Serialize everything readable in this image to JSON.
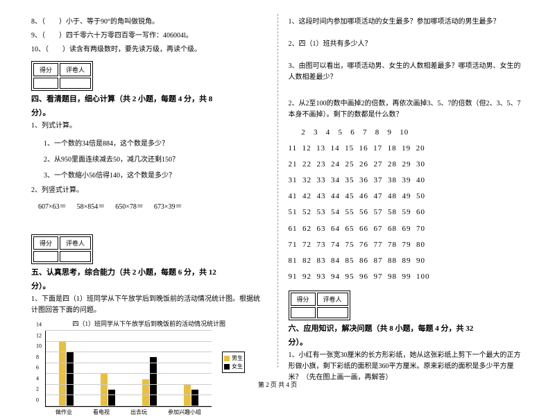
{
  "left": {
    "q8": "8、（　　）小于、等于90°的角叫做锐角。",
    "q9": "9、（　　）四千零六十万零四百零一写作：406004l。",
    "q10": "10、（　　）读含有两级数时，要先读万级，再读个级。",
    "score_hdr1": "得分",
    "score_hdr2": "评卷人",
    "sec4_title": "四、看清题目，细心计算（共 2 小题，每题 4 分，共 8",
    "fen": "分）。",
    "s1": "1、列式计算。",
    "s1a": "1、一个数的34倍是884，这个数是多少？",
    "s1b": "2、从950里面连续减去50，减几次还剩150？",
    "s1c": "3、一个数缩小56倍得140，这个数是多少？",
    "s2": "2、列竖式计算。",
    "calc1": "607×63＝",
    "calc2": "58×854＝",
    "calc3": "650×78＝",
    "calc4": "673×39＝",
    "sec5_title": "五、认真思考，综合能力（共 2 小题，每题 6 分，共 12",
    "s5_1": "1、下面是四（1）班同学从下午放学后到晚饭前的活动情况统计图。根据统计图回答下面的问题。",
    "chart_title": "四（1）班同学从下午放学后到晚饭前的活动情况统计图",
    "chart": {
      "ylim": [
        0,
        14
      ],
      "ytick_step": 2,
      "categories": [
        "做作业",
        "看电视",
        "出去玩",
        "参加兴趣小组"
      ],
      "boys": [
        12,
        6,
        5,
        4
      ],
      "girls": [
        10,
        3,
        9,
        3
      ],
      "boy_color": "#e8c040",
      "girl_color": "#000000",
      "grid_color": "#cccccc",
      "legend_boy": "男生",
      "legend_girl": "女生"
    }
  },
  "right": {
    "q1": "1、这段时间内参加哪项活动的女生最多？参加哪项活动的男生最多？",
    "q2": "2、四（1）班共有多少人？",
    "q3": "3、由图可以看出，哪项活动男、女生的人数相差最多？哪项活动男、女生的人数相差最少？",
    "s2": "2、从2至100的数中画掉2的倍数，再依次画掉3、5、7的倍数（但2、3、5、7本身不画掉）。剩下的数都是什么数？",
    "grid_rows": [
      "     2   3   4   5   6   7   8   9   10",
      "11  12  13  14  15  16  17  18  19  20",
      "21  22  23  24  25  26  27  28  29  30",
      "31  32  33  34  35  36  37  38  39  40",
      "41  42  43  44  45  46  47  48  49  50",
      "51  52  53  54  55  56  57  58  59  60",
      "61  62  63  64  65  66  67  68  69  70",
      "71  72  73  74  75  76  77  78  79  80",
      "81  82  83  84  85  86  87  88  89  90",
      "91  92  93  94  95  96  97  98  99  100"
    ],
    "score_hdr1": "得分",
    "score_hdr2": "评卷人",
    "sec6_title": "六、应用知识，解决问题（共 8 小题，每题 4 分，共 32",
    "fen": "分）。",
    "s6_1": "1、小红有一张宽30厘米的长方形彩纸，她从这张彩纸上剪下一个最大的正方形做小旗，剩下彩纸的面积是360平方厘米。原来彩纸的面积是多少平方厘米？（先在图上画一画，再解答）"
  },
  "footer": "第 2 页 共 4 页"
}
